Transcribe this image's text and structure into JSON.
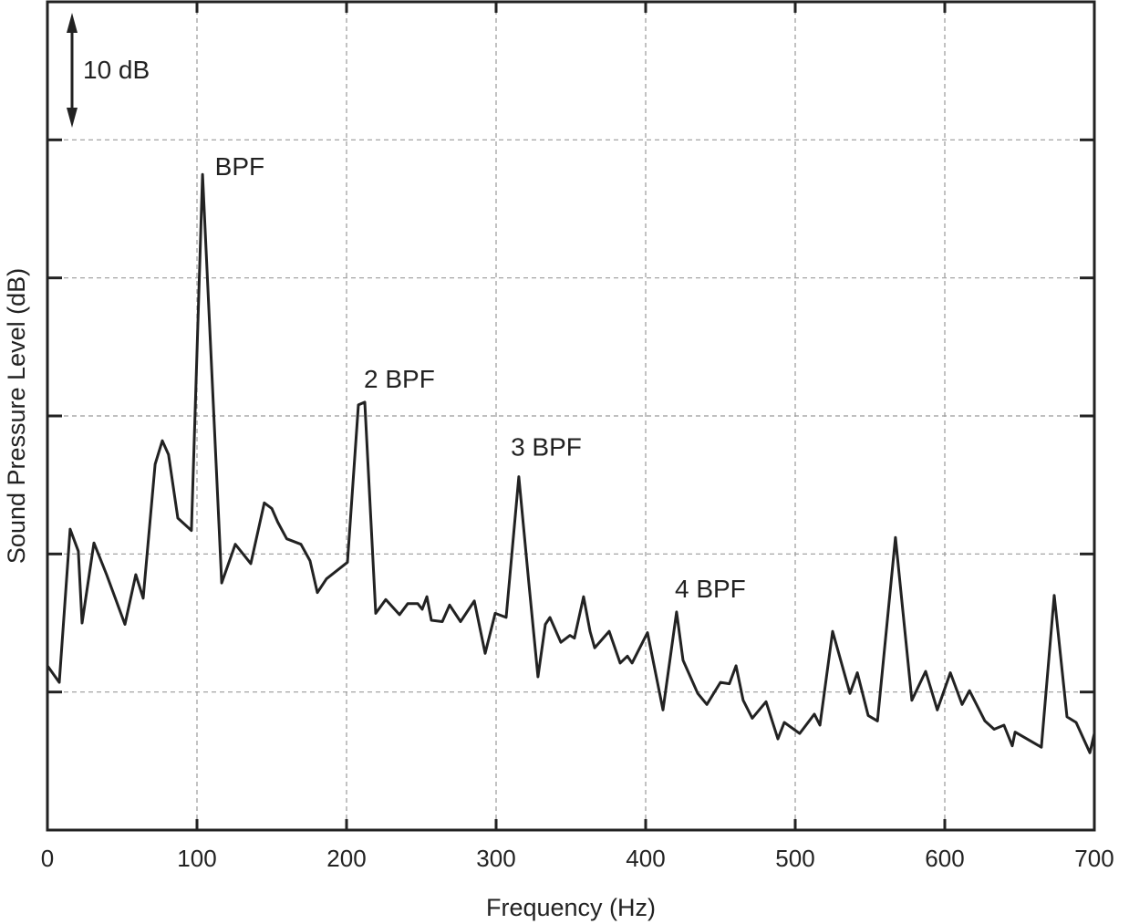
{
  "chart_data": {
    "type": "line",
    "title": "",
    "xlabel": "Frequency (Hz)",
    "ylabel": "Sound Pressure Level (dB)",
    "xlim": [
      0,
      700
    ],
    "ylim": [
      0,
      60
    ],
    "xticks": [
      0,
      100,
      200,
      300,
      400,
      500,
      600,
      700
    ],
    "xtick_labels": [
      "0",
      "100",
      "200",
      "300",
      "400",
      "500",
      "600",
      "700"
    ],
    "yticks": [
      10,
      20,
      30,
      40,
      50
    ],
    "y_tick_labels_shown": false,
    "grid": true,
    "line_color": "#222222",
    "scale_bar": {
      "label": "10 dB",
      "value_db": 10
    },
    "annotations": [
      {
        "text": "BPF",
        "x": 112,
        "y": 48.1
      },
      {
        "text": "2 BPF",
        "x": 211.6,
        "y": 32.7
      },
      {
        "text": "3 BPF",
        "x": 309.8,
        "y": 27.8
      },
      {
        "text": "4 BPF",
        "x": 419.5,
        "y": 17.5
      }
    ],
    "series": [
      {
        "x": [
          0,
          7.9,
          15.2,
          20.7,
          23.2,
          31.1,
          39.6,
          51.8,
          59.1,
          64,
          72,
          76.8,
          81,
          87.2,
          96.3,
          103.7,
          116.5,
          125.6,
          136,
          145,
          150,
          154,
          160,
          169.5,
          175.6,
          180.5,
          186.6,
          200.6,
          207.9,
          212.2,
          219.5,
          226.2,
          235.4,
          240.9,
          247.6,
          250.6,
          253.7,
          256.7,
          264,
          268.9,
          276.2,
          285.4,
          292.7,
          299.4,
          306.7,
          315.2,
          321.9,
          328,
          332.9,
          336,
          343.3,
          349.4,
          352.4,
          358.5,
          362.8,
          365.9,
          375.6,
          382.9,
          387.8,
          390.9,
          401.2,
          411.6,
          420.7,
          425,
          434.8,
          440.9,
          450,
          456,
          460.4,
          465.2,
          471.3,
          480.5,
          488.4,
          492.7,
          503,
          512.8,
          516.5,
          525,
          536.6,
          541.5,
          548.8,
          555,
          567,
          578,
          587.2,
          595,
          603.7,
          611.6,
          616.5,
          626.8,
          633,
          639.6,
          645.1,
          647,
          664.6,
          673.2,
          681.7,
          687.8,
          697,
          700
        ],
        "y": [
          11.9,
          10.7,
          21.8,
          20.2,
          15.0,
          20.8,
          18.5,
          14.9,
          18.5,
          16.8,
          26.5,
          28.2,
          27.2,
          22.6,
          21.7,
          47.5,
          17.9,
          20.7,
          19.3,
          23.7,
          23.3,
          22.3,
          21.1,
          20.7,
          19.5,
          17.2,
          18.2,
          19.4,
          30.8,
          31.0,
          15.7,
          16.7,
          15.6,
          16.4,
          16.4,
          16.0,
          16.9,
          15.2,
          15.1,
          16.3,
          15.1,
          16.6,
          12.8,
          15.7,
          15.4,
          25.6,
          17.9,
          11.1,
          14.9,
          15.4,
          13.6,
          14.1,
          13.9,
          16.9,
          14.4,
          13.2,
          14.4,
          12.1,
          12.6,
          12.1,
          14.3,
          8.7,
          15.8,
          12.3,
          9.9,
          9.1,
          10.7,
          10.6,
          11.9,
          9.4,
          8.1,
          9.3,
          6.6,
          7.8,
          7.0,
          8.4,
          7.6,
          14.4,
          9.9,
          11.4,
          8.3,
          7.9,
          21.2,
          9.4,
          11.5,
          8.7,
          11.4,
          9.1,
          10.1,
          7.9,
          7.3,
          7.6,
          6.1,
          7.1,
          6.0,
          17.0,
          8.2,
          7.8,
          5.6,
          7.0
        ]
      }
    ]
  }
}
